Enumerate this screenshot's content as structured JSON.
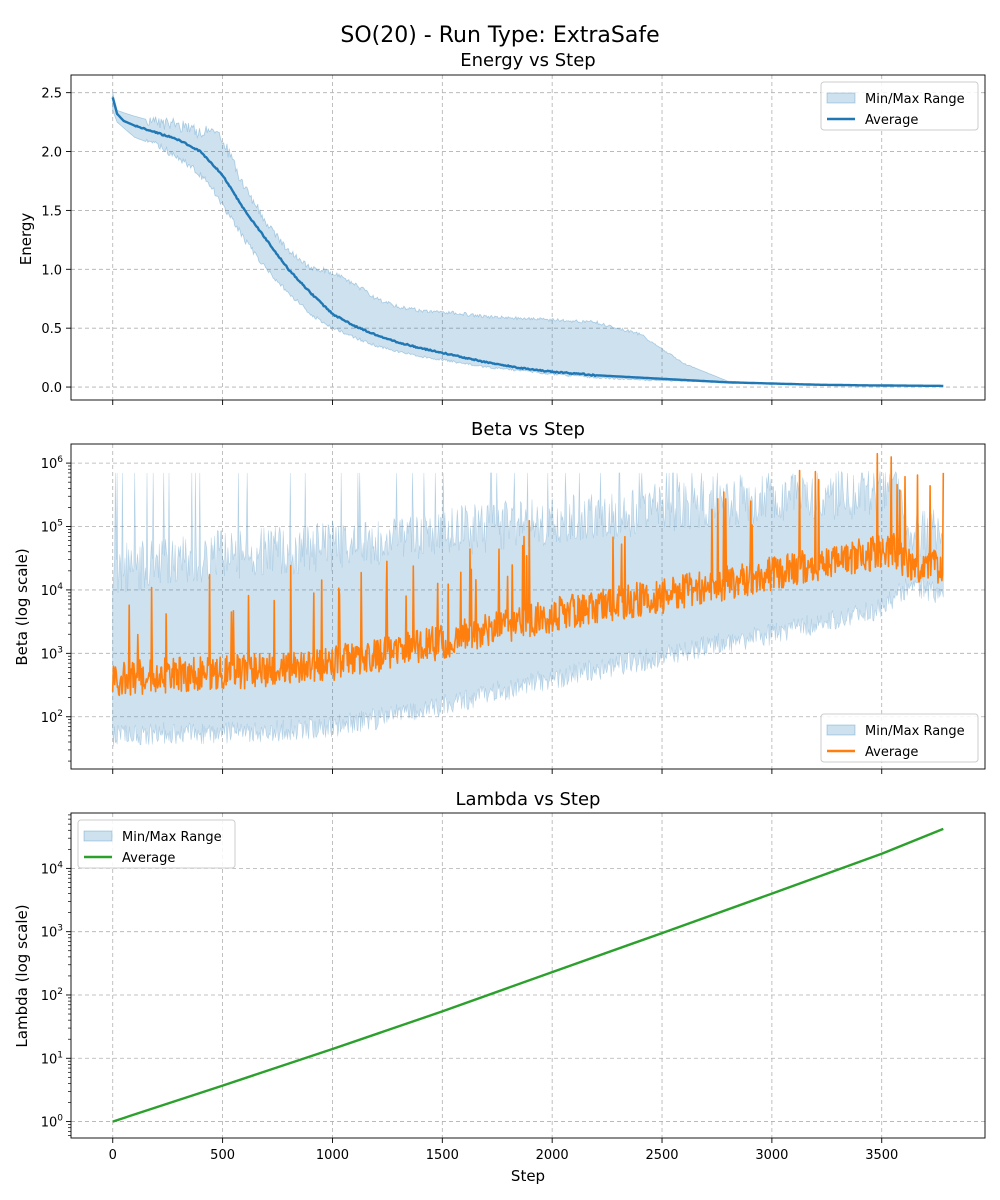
{
  "figure_title": "SO(20) - Run Type: ExtraSafe",
  "xlabel": "Step",
  "colors": {
    "band": "#1f77b4",
    "energy_line": "#1f77b4",
    "beta_line": "#ff7f0e",
    "lambda_line": "#2ca02c",
    "grid": "#b0b0b0"
  },
  "chart_data": [
    {
      "id": "energy",
      "type": "area",
      "title": "Energy vs Step",
      "xlabel": "",
      "ylabel": "Energy",
      "yscale": "linear",
      "xlim": [
        -190,
        3970
      ],
      "ylim": [
        -0.11,
        2.65
      ],
      "xticks": [
        0,
        500,
        1000,
        1500,
        2000,
        2500,
        3000,
        3500
      ],
      "yticks": [
        0.0,
        0.5,
        1.0,
        1.5,
        2.0,
        2.5
      ],
      "ytick_labels": [
        "0.0",
        "0.5",
        "1.0",
        "1.5",
        "2.0",
        "2.5"
      ],
      "show_xtick_labels": false,
      "grid": true,
      "legend": {
        "position": "top-right",
        "entries": [
          "Min/Max Range",
          "Average"
        ]
      },
      "series": [
        {
          "name": "Average",
          "kind": "line",
          "x": [
            0,
            20,
            50,
            100,
            200,
            300,
            400,
            450,
            500,
            550,
            600,
            700,
            800,
            900,
            1000,
            1100,
            1200,
            1300,
            1400,
            1500,
            1600,
            1700,
            1800,
            1900,
            2000,
            2200,
            2400,
            2600,
            2800,
            3000,
            3200,
            3400,
            3600,
            3780
          ],
          "y": [
            2.46,
            2.32,
            2.26,
            2.22,
            2.16,
            2.1,
            2.0,
            1.9,
            1.8,
            1.65,
            1.5,
            1.25,
            1.0,
            0.8,
            0.62,
            0.52,
            0.44,
            0.38,
            0.33,
            0.29,
            0.25,
            0.21,
            0.18,
            0.15,
            0.13,
            0.1,
            0.08,
            0.06,
            0.04,
            0.03,
            0.02,
            0.015,
            0.012,
            0.01
          ]
        },
        {
          "name": "Min/Max Range",
          "kind": "band",
          "x": [
            0,
            20,
            50,
            100,
            200,
            300,
            400,
            450,
            500,
            550,
            600,
            700,
            800,
            900,
            1000,
            1100,
            1200,
            1300,
            1400,
            1500,
            1600,
            1700,
            1800,
            1900,
            2000,
            2200,
            2400,
            2600,
            2800,
            3000,
            3200,
            3400,
            3600,
            3780
          ],
          "y_min": [
            2.35,
            2.25,
            2.2,
            2.12,
            2.05,
            1.95,
            1.8,
            1.7,
            1.55,
            1.4,
            1.25,
            1.0,
            0.8,
            0.62,
            0.5,
            0.42,
            0.35,
            0.3,
            0.26,
            0.23,
            0.2,
            0.17,
            0.15,
            0.13,
            0.11,
            0.08,
            0.06,
            0.05,
            0.04,
            0.03,
            0.02,
            0.015,
            0.01,
            0.01
          ],
          "y_max": [
            2.5,
            2.35,
            2.33,
            2.3,
            2.25,
            2.22,
            2.16,
            2.18,
            2.1,
            1.9,
            1.7,
            1.4,
            1.15,
            1.02,
            0.97,
            0.88,
            0.75,
            0.68,
            0.65,
            0.64,
            0.62,
            0.6,
            0.59,
            0.58,
            0.57,
            0.55,
            0.45,
            0.2,
            0.05,
            0.03,
            0.02,
            0.015,
            0.012,
            0.01
          ]
        }
      ]
    },
    {
      "id": "beta",
      "type": "area",
      "title": "Beta vs Step",
      "xlabel": "",
      "ylabel": "Beta (log scale)",
      "yscale": "log",
      "xlim": [
        -190,
        3970
      ],
      "ylim": [
        15,
        2000000
      ],
      "xticks": [
        0,
        500,
        1000,
        1500,
        2000,
        2500,
        3000,
        3500
      ],
      "yticks": [
        100,
        1000,
        10000,
        100000,
        1000000
      ],
      "ytick_exponents": [
        "2",
        "3",
        "4",
        "5",
        "6"
      ],
      "show_xtick_labels": false,
      "grid": true,
      "legend": {
        "position": "bottom-right",
        "entries": [
          "Min/Max Range",
          "Average"
        ]
      },
      "series": [
        {
          "name": "Average",
          "kind": "line",
          "x": [
            0,
            250,
            500,
            750,
            1000,
            1250,
            1500,
            1750,
            2000,
            2250,
            2500,
            2750,
            3000,
            3250,
            3500,
            3550,
            3600,
            3650,
            3700,
            3780
          ],
          "y": [
            400,
            450,
            500,
            550,
            700,
            1000,
            1500,
            2500,
            4000,
            6000,
            8000,
            12000,
            18000,
            28000,
            40000,
            45000,
            30000,
            20000,
            22000,
            25000
          ]
        },
        {
          "name": "Min/Max Range",
          "kind": "band",
          "x": [
            0,
            250,
            500,
            750,
            1000,
            1250,
            1500,
            1750,
            2000,
            2250,
            2500,
            2750,
            3000,
            3250,
            3500,
            3550,
            3600,
            3650,
            3700,
            3780
          ],
          "y_min": [
            50,
            55,
            55,
            60,
            70,
            100,
            150,
            250,
            400,
            600,
            900,
            1400,
            2000,
            3200,
            5000,
            7000,
            10000,
            12000,
            10000,
            8000
          ],
          "y_max": [
            20000,
            30000,
            35000,
            40000,
            50000,
            60000,
            80000,
            100000,
            130000,
            150000,
            200000,
            250000,
            280000,
            300000,
            350000,
            400000,
            150000,
            90000,
            80000,
            70000
          ]
        }
      ]
    },
    {
      "id": "lambda",
      "type": "area",
      "title": "Lambda vs Step",
      "xlabel": "Step",
      "ylabel": "Lambda (log scale)",
      "yscale": "log",
      "xlim": [
        -190,
        3970
      ],
      "ylim": [
        0.55,
        75000
      ],
      "xticks": [
        0,
        500,
        1000,
        1500,
        2000,
        2500,
        3000,
        3500
      ],
      "yticks": [
        1,
        10,
        100,
        1000,
        10000
      ],
      "ytick_exponents": [
        "0",
        "1",
        "2",
        "3",
        "4"
      ],
      "show_xtick_labels": true,
      "grid": true,
      "legend": {
        "position": "top-left",
        "entries": [
          "Min/Max Range",
          "Average"
        ]
      },
      "series": [
        {
          "name": "Average",
          "kind": "line",
          "x": [
            0,
            500,
            1000,
            1500,
            2000,
            2500,
            3000,
            3500,
            3780
          ],
          "y": [
            1,
            3.7,
            14,
            55,
            230,
            950,
            4000,
            17000,
            42000
          ]
        },
        {
          "name": "Min/Max Range",
          "kind": "band",
          "x": [
            0,
            500,
            1000,
            1500,
            2000,
            2500,
            3000,
            3500,
            3780
          ],
          "y_min": [
            1,
            3.7,
            14,
            55,
            230,
            950,
            4000,
            17000,
            42000
          ],
          "y_max": [
            1,
            3.7,
            14,
            55,
            230,
            950,
            4000,
            17000,
            42000
          ]
        }
      ]
    }
  ]
}
